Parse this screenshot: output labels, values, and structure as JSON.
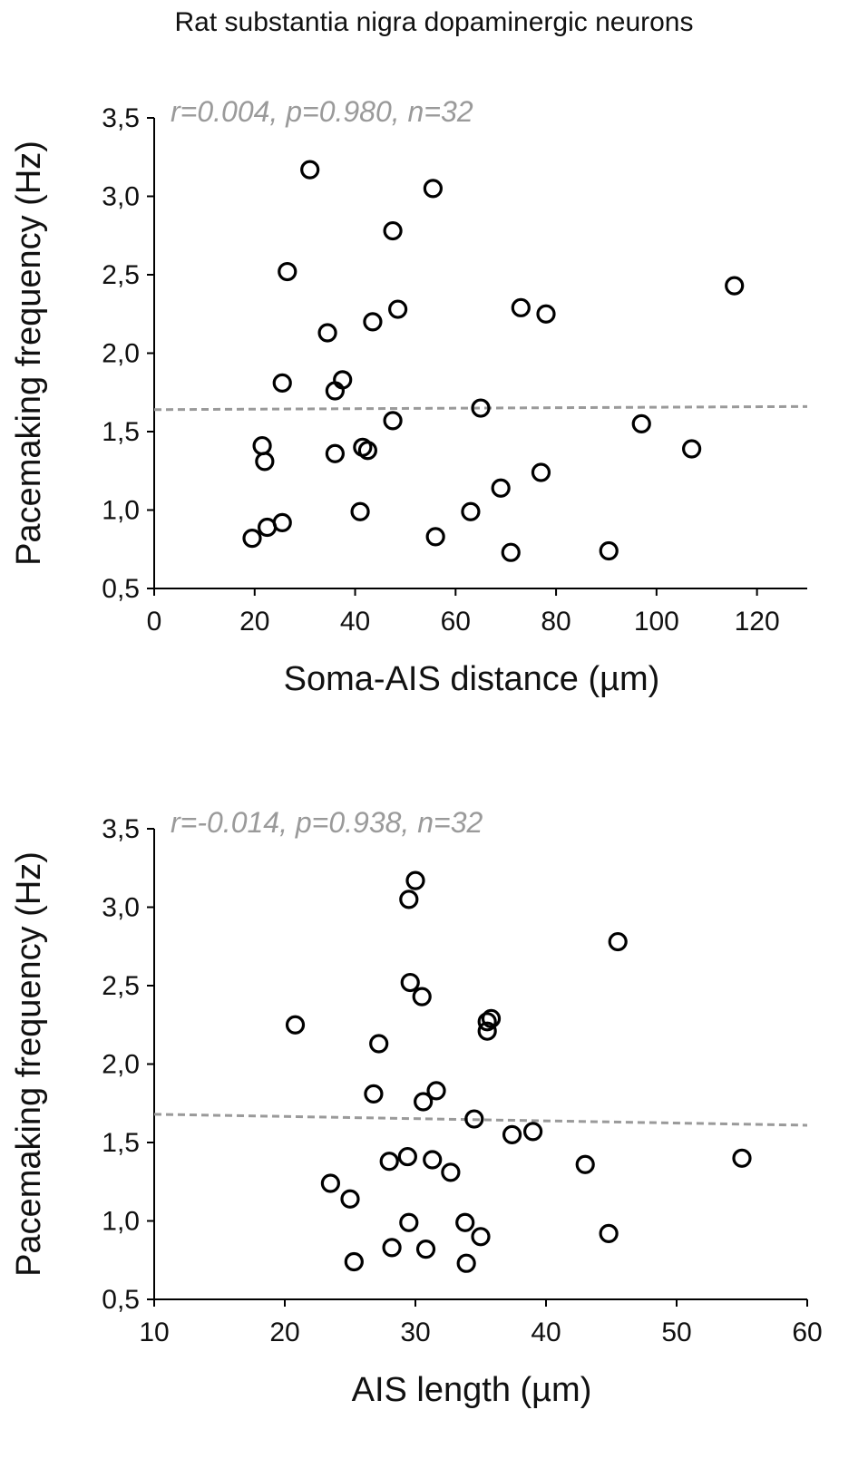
{
  "figure_title": "Rat substantia nigra dopaminergic neurons",
  "colors": {
    "points": "#000000",
    "fit_line": "#9a9a9a",
    "stats_text": "#9a9a9a"
  },
  "chart_data": [
    {
      "type": "scatter",
      "annotation": "r=0.004, p=0.980, n=32",
      "xlabel": "Soma-AIS distance (µm)",
      "ylabel": "Pacemaking frequency (Hz)",
      "xlim": [
        0,
        130
      ],
      "ylim": [
        0.5,
        3.5
      ],
      "xticks": [
        0,
        20,
        40,
        60,
        80,
        100,
        120
      ],
      "xtick_labels": [
        "0",
        "20",
        "40",
        "60",
        "80",
        "100",
        "120"
      ],
      "yticks": [
        0.5,
        1.0,
        1.5,
        2.0,
        2.5,
        3.0,
        3.5
      ],
      "ytick_labels": [
        "0,5",
        "1,0",
        "1,5",
        "2,0",
        "2,5",
        "3,0",
        "3,5"
      ],
      "grid": false,
      "fit_line": {
        "style": "dashed",
        "x": [
          0,
          130
        ],
        "y": [
          1.64,
          1.66
        ]
      },
      "points": [
        {
          "x": 31.0,
          "y": 3.17
        },
        {
          "x": 55.5,
          "y": 3.05
        },
        {
          "x": 47.5,
          "y": 2.78
        },
        {
          "x": 26.5,
          "y": 2.52
        },
        {
          "x": 115.5,
          "y": 2.43
        },
        {
          "x": 73.0,
          "y": 2.29
        },
        {
          "x": 48.5,
          "y": 2.28
        },
        {
          "x": 78.0,
          "y": 2.25
        },
        {
          "x": 43.5,
          "y": 2.2
        },
        {
          "x": 34.5,
          "y": 2.13
        },
        {
          "x": 37.5,
          "y": 1.83
        },
        {
          "x": 25.5,
          "y": 1.81
        },
        {
          "x": 36.0,
          "y": 1.76
        },
        {
          "x": 65.0,
          "y": 1.65
        },
        {
          "x": 47.5,
          "y": 1.57
        },
        {
          "x": 97.0,
          "y": 1.55
        },
        {
          "x": 21.5,
          "y": 1.41
        },
        {
          "x": 41.5,
          "y": 1.4
        },
        {
          "x": 107.0,
          "y": 1.39
        },
        {
          "x": 42.5,
          "y": 1.38
        },
        {
          "x": 36.0,
          "y": 1.36
        },
        {
          "x": 22.0,
          "y": 1.31
        },
        {
          "x": 77.0,
          "y": 1.24
        },
        {
          "x": 69.0,
          "y": 1.14
        },
        {
          "x": 41.0,
          "y": 0.99
        },
        {
          "x": 63.0,
          "y": 0.99
        },
        {
          "x": 25.5,
          "y": 0.92
        },
        {
          "x": 22.5,
          "y": 0.89
        },
        {
          "x": 56.0,
          "y": 0.83
        },
        {
          "x": 19.5,
          "y": 0.82
        },
        {
          "x": 90.5,
          "y": 0.74
        },
        {
          "x": 71.0,
          "y": 0.73
        }
      ]
    },
    {
      "type": "scatter",
      "annotation": "r=-0.014, p=0.938, n=32",
      "xlabel": "AIS length (µm)",
      "ylabel": "Pacemaking frequency (Hz)",
      "xlim": [
        10,
        60
      ],
      "ylim": [
        0.5,
        3.5
      ],
      "xticks": [
        10,
        20,
        30,
        40,
        50,
        60
      ],
      "xtick_labels": [
        "10",
        "20",
        "30",
        "40",
        "50",
        "60"
      ],
      "yticks": [
        0.5,
        1.0,
        1.5,
        2.0,
        2.5,
        3.0,
        3.5
      ],
      "ytick_labels": [
        "0,5",
        "1,0",
        "1,5",
        "2,0",
        "2,5",
        "3,0",
        "3,5"
      ],
      "grid": false,
      "fit_line": {
        "style": "dashed",
        "x": [
          10,
          60
        ],
        "y": [
          1.68,
          1.61
        ]
      },
      "points": [
        {
          "x": 30.0,
          "y": 3.17
        },
        {
          "x": 29.5,
          "y": 3.05
        },
        {
          "x": 45.5,
          "y": 2.78
        },
        {
          "x": 29.6,
          "y": 2.52
        },
        {
          "x": 30.5,
          "y": 2.43
        },
        {
          "x": 35.8,
          "y": 2.29
        },
        {
          "x": 35.5,
          "y": 2.27
        },
        {
          "x": 20.8,
          "y": 2.25
        },
        {
          "x": 35.5,
          "y": 2.21
        },
        {
          "x": 27.2,
          "y": 2.13
        },
        {
          "x": 31.6,
          "y": 1.83
        },
        {
          "x": 26.8,
          "y": 1.81
        },
        {
          "x": 30.6,
          "y": 1.76
        },
        {
          "x": 34.5,
          "y": 1.65
        },
        {
          "x": 39.0,
          "y": 1.57
        },
        {
          "x": 37.4,
          "y": 1.55
        },
        {
          "x": 29.4,
          "y": 1.41
        },
        {
          "x": 55.0,
          "y": 1.4
        },
        {
          "x": 31.3,
          "y": 1.39
        },
        {
          "x": 28.0,
          "y": 1.38
        },
        {
          "x": 43.0,
          "y": 1.36
        },
        {
          "x": 32.7,
          "y": 1.31
        },
        {
          "x": 23.5,
          "y": 1.24
        },
        {
          "x": 25.0,
          "y": 1.14
        },
        {
          "x": 29.5,
          "y": 0.99
        },
        {
          "x": 33.8,
          "y": 0.99
        },
        {
          "x": 44.8,
          "y": 0.92
        },
        {
          "x": 35.0,
          "y": 0.9
        },
        {
          "x": 28.2,
          "y": 0.83
        },
        {
          "x": 30.8,
          "y": 0.82
        },
        {
          "x": 25.3,
          "y": 0.74
        },
        {
          "x": 33.9,
          "y": 0.73
        }
      ]
    }
  ]
}
